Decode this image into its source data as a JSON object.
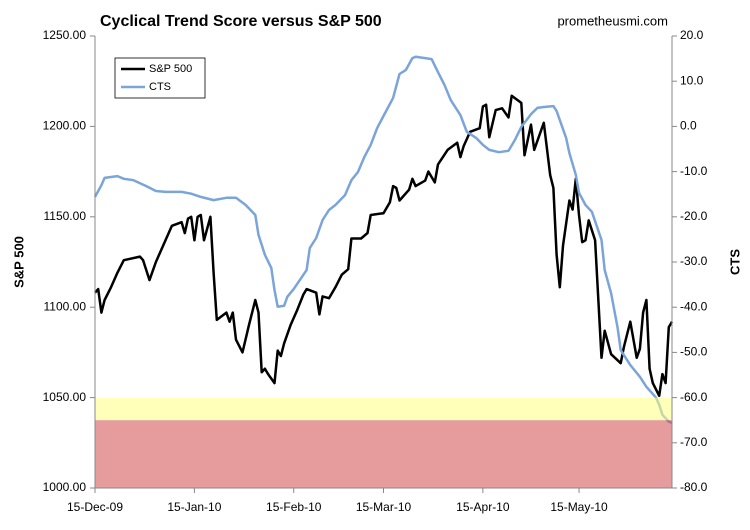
{
  "chart_data": {
    "type": "line",
    "title": "Cyclical Trend Score versus S&P 500",
    "source": "prometheusmi.com",
    "y_label": "S&P 500",
    "y2_label": "CTS",
    "xlim": [
      0,
      180
    ],
    "xticks": [
      {
        "value": 0,
        "label": "15-Dec-09"
      },
      {
        "value": 31,
        "label": "15-Jan-10"
      },
      {
        "value": 62,
        "label": "15-Feb-10"
      },
      {
        "value": 90,
        "label": "15-Mar-10"
      },
      {
        "value": 121,
        "label": "15-Apr-10"
      },
      {
        "value": 151,
        "label": "15-May-10"
      }
    ],
    "ylim": [
      1000,
      1250
    ],
    "yticks": [
      {
        "value": 1000,
        "label": "1000.00"
      },
      {
        "value": 1050,
        "label": "1050.00"
      },
      {
        "value": 1100,
        "label": "1100.00"
      },
      {
        "value": 1150,
        "label": "1150.00"
      },
      {
        "value": 1200,
        "label": "1200.00"
      },
      {
        "value": 1250,
        "label": "1250.00"
      }
    ],
    "y2lim": [
      -80,
      20
    ],
    "y2ticks": [
      {
        "value": -80,
        "label": "-80.0"
      },
      {
        "value": -70,
        "label": "-70.0"
      },
      {
        "value": -60,
        "label": "-60.0"
      },
      {
        "value": -50,
        "label": "-50.0"
      },
      {
        "value": -40,
        "label": "-40.0"
      },
      {
        "value": -30,
        "label": "-30.0"
      },
      {
        "value": -20,
        "label": "-20.0"
      },
      {
        "value": -10,
        "label": "-10.0"
      },
      {
        "value": 0,
        "label": "0.0"
      },
      {
        "value": 10,
        "label": "10.0"
      },
      {
        "value": 20,
        "label": "20.0"
      }
    ],
    "bands": [
      {
        "from": 1037.5,
        "to": 1050,
        "color": "#ffff80"
      },
      {
        "from": 1000,
        "to": 1037.5,
        "color": "#d24a4a"
      }
    ],
    "legend": "upper left",
    "series": [
      {
        "name": "S&P 500",
        "color": "#000000",
        "axis": "y",
        "x": [
          0,
          1,
          2,
          3,
          5,
          7,
          9,
          14,
          15,
          17,
          19,
          22,
          24,
          27,
          28,
          29,
          30,
          31,
          32,
          33,
          34,
          36,
          37,
          38,
          41,
          42,
          43,
          44,
          46,
          48,
          50,
          51,
          52,
          53,
          54,
          56,
          57,
          58,
          59,
          61,
          63,
          65,
          66,
          69,
          70,
          71,
          73,
          75,
          77,
          79,
          80,
          83,
          85,
          86,
          90,
          92,
          93,
          94,
          95,
          98,
          99,
          100,
          103,
          104,
          106,
          107,
          110,
          113,
          114,
          115,
          117,
          120,
          121,
          122,
          123,
          125,
          127,
          129,
          130,
          133,
          134,
          136,
          137,
          140,
          142,
          143,
          144,
          145,
          146,
          148,
          149,
          150,
          151,
          152,
          153,
          154,
          156,
          158,
          159,
          161,
          164,
          165,
          167,
          169,
          170,
          171,
          172,
          173,
          174,
          176,
          177,
          178,
          179,
          180
        ],
        "values": [
          1108,
          1110,
          1097,
          1104,
          1111,
          1119,
          1126,
          1128,
          1126,
          1115,
          1125,
          1137,
          1145,
          1147,
          1141,
          1149,
          1150,
          1137,
          1150,
          1151,
          1137,
          1150,
          1119,
          1093,
          1097,
          1092,
          1097,
          1082,
          1075,
          1090,
          1104,
          1097,
          1064,
          1066,
          1063,
          1058,
          1076,
          1073,
          1080,
          1090,
          1098,
          1107,
          1110,
          1108,
          1096,
          1106,
          1105,
          1111,
          1118,
          1121,
          1138,
          1138,
          1141,
          1151,
          1152,
          1158,
          1167,
          1166,
          1159,
          1165,
          1171,
          1167,
          1170,
          1175,
          1169,
          1179,
          1187,
          1191,
          1183,
          1189,
          1197,
          1199,
          1211,
          1212,
          1194,
          1209,
          1210,
          1205,
          1217,
          1213,
          1184,
          1201,
          1187,
          1202,
          1173,
          1166,
          1129,
          1111,
          1134,
          1159,
          1154,
          1171,
          1151,
          1136,
          1137,
          1148,
          1137,
          1072,
          1087,
          1074,
          1069,
          1078,
          1092,
          1072,
          1077,
          1097,
          1104,
          1066,
          1058,
          1051,
          1063,
          1058,
          1089,
          1092
        ]
      },
      {
        "name": "CTS",
        "color": "#7ba4d9",
        "axis": "y2",
        "x": [
          0,
          2,
          3,
          5,
          7,
          9,
          12,
          16,
          19,
          22,
          27,
          30,
          33,
          37,
          41,
          44,
          47,
          50,
          51,
          53,
          55,
          56,
          57,
          59,
          60,
          62,
          66,
          67,
          69,
          71,
          73,
          75,
          78,
          80,
          82,
          84,
          86,
          88,
          90,
          93,
          95,
          97,
          99,
          100,
          103,
          105,
          107,
          109,
          111,
          114,
          116,
          119,
          121,
          123,
          126,
          129,
          131,
          133,
          136,
          138,
          140,
          143,
          144,
          147,
          148,
          150,
          151,
          153,
          155,
          158,
          159,
          161,
          163,
          164,
          167,
          170,
          172,
          175,
          176,
          177,
          179,
          180
        ],
        "values": [
          -15.6,
          -13.0,
          -11.4,
          -11.2,
          -11.0,
          -11.6,
          -11.9,
          -13.2,
          -14.3,
          -14.5,
          -14.5,
          -14.9,
          -15.6,
          -16.3,
          -15.8,
          -15.8,
          -17.4,
          -19.6,
          -24.0,
          -28.4,
          -31.3,
          -36.2,
          -39.9,
          -39.7,
          -37.7,
          -36.0,
          -31.8,
          -26.9,
          -24.7,
          -20.7,
          -18.5,
          -17.4,
          -15.2,
          -11.9,
          -10.1,
          -6.8,
          -4.1,
          -0.4,
          2.3,
          6.3,
          11.6,
          12.5,
          15.1,
          15.4,
          15.1,
          14.9,
          12.0,
          9.2,
          5.8,
          2.5,
          -1.2,
          -2.6,
          -4.1,
          -5.2,
          -5.7,
          -5.4,
          -3.0,
          -0.1,
          2.7,
          4.1,
          4.3,
          4.5,
          3.4,
          -2.6,
          -5.9,
          -10.7,
          -14.7,
          -17.4,
          -18.9,
          -25.1,
          -31.8,
          -36.9,
          -44.4,
          -49.5,
          -52.8,
          -55.4,
          -57.6,
          -60.0,
          -61.6,
          -63.8,
          -65.3,
          -65.6
        ]
      }
    ]
  }
}
